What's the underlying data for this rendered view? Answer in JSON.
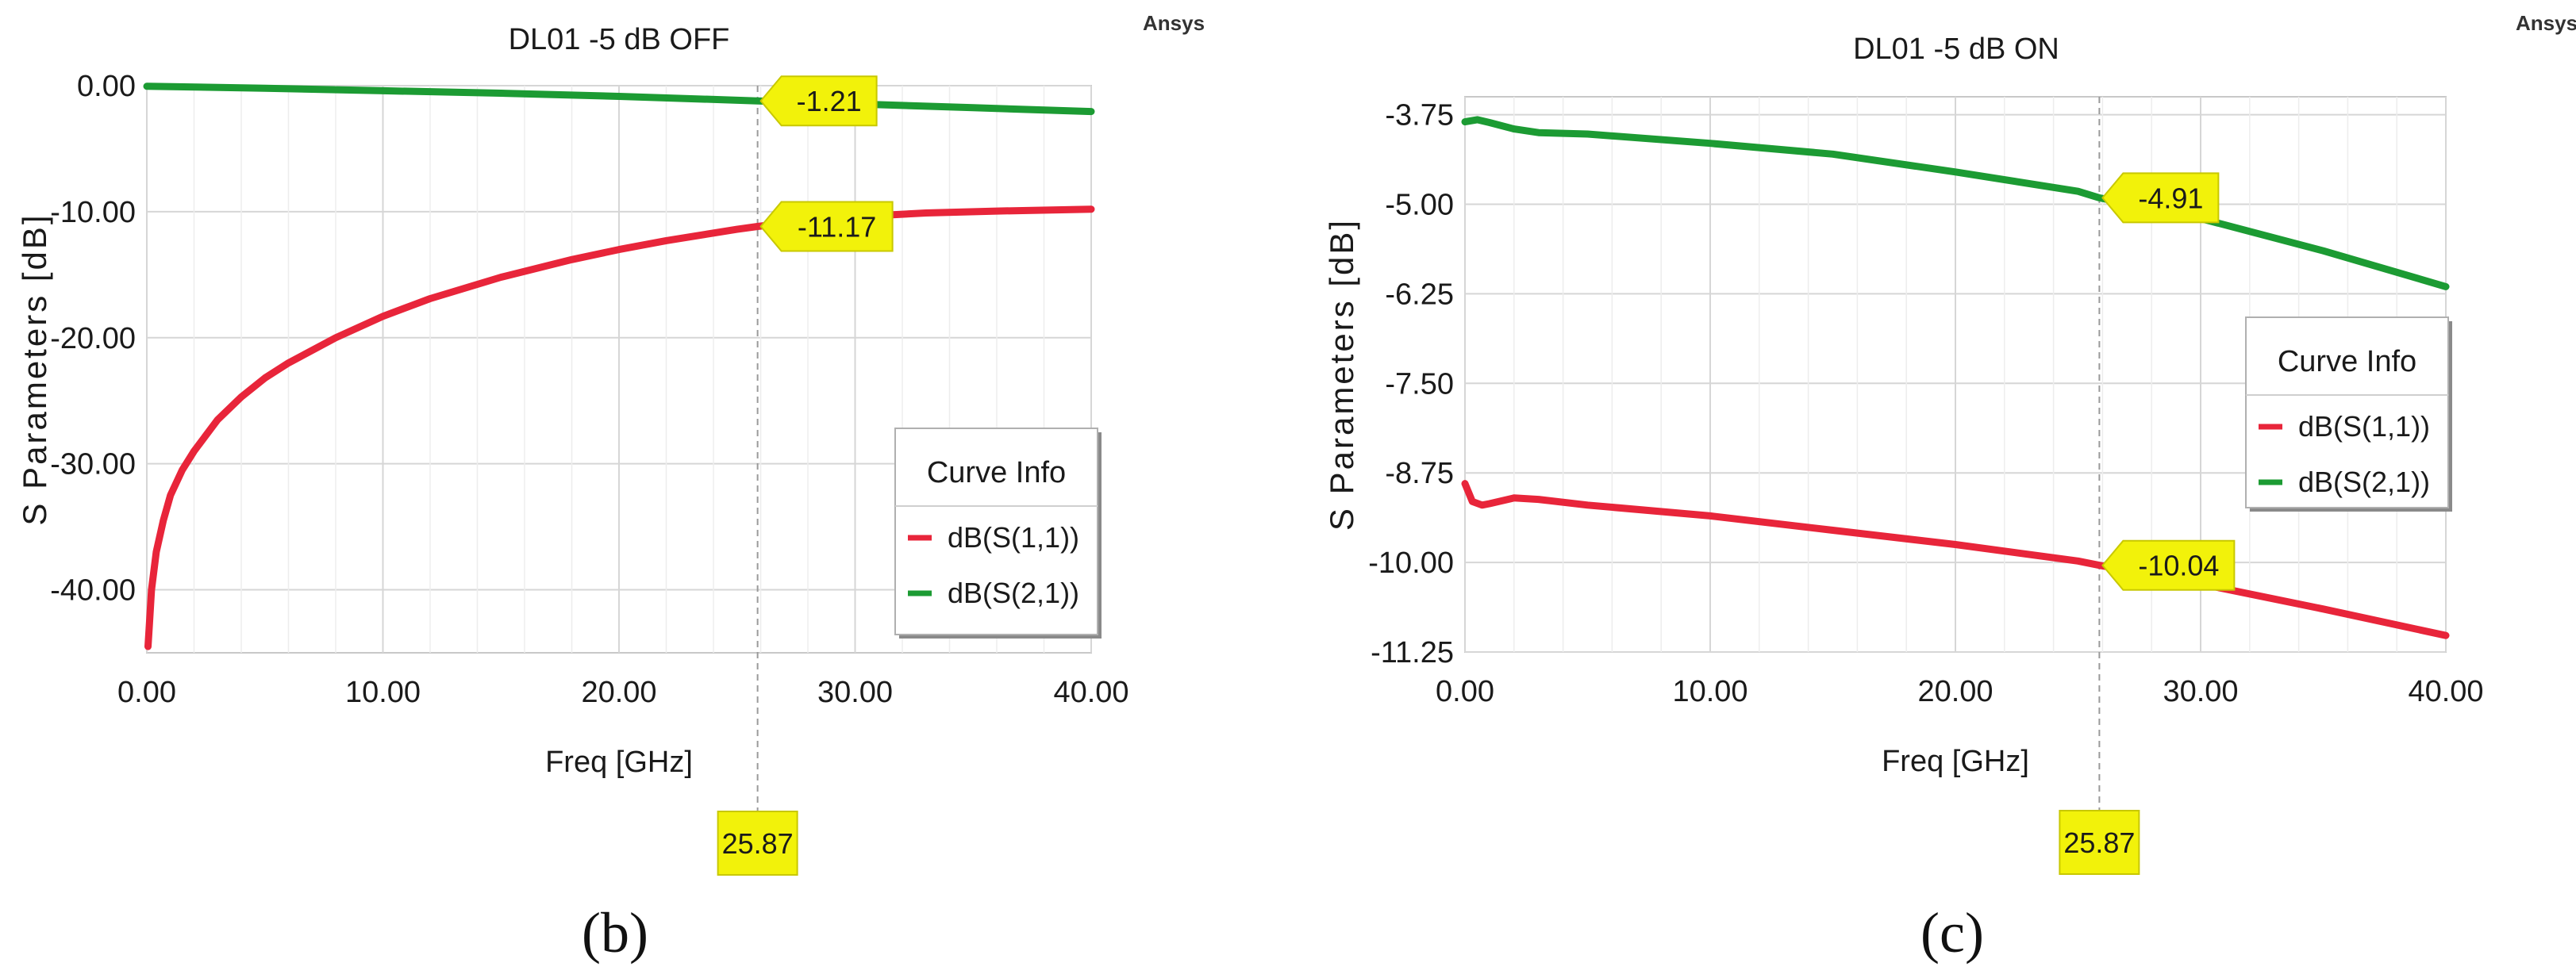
{
  "brand": "Ansys",
  "charts": [
    {
      "type": "line",
      "panel_caption": "(b)",
      "title": "DL01 -5 dB OFF",
      "xlabel": "Freq [GHz]",
      "ylabel": "S Parameters [dB]",
      "xlim": [
        0,
        40
      ],
      "ylim": [
        -45,
        0
      ],
      "x_ticks": [
        0,
        10,
        20,
        30,
        40
      ],
      "x_tick_labels": [
        "0.00",
        "10.00",
        "20.00",
        "30.00",
        "40.00"
      ],
      "y_ticks": [
        0,
        -10,
        -20,
        -30,
        -40
      ],
      "y_tick_labels": [
        "0.00",
        "-10.00",
        "-20.00",
        "-30.00",
        "-40.00"
      ],
      "grid": true,
      "legend": {
        "title": "Curve Info",
        "placement": "bottom-right",
        "entries": [
          "dB(S(1,1))",
          "dB(S(2,1))"
        ]
      },
      "marker": {
        "x": 25.87,
        "label": "25.87"
      },
      "series": [
        {
          "name": "dB(S(1,1))",
          "color": "#e8253a",
          "x": [
            0.05,
            0.1,
            0.2,
            0.4,
            0.7,
            1,
            1.5,
            2,
            3,
            4,
            5,
            6,
            8,
            10,
            12,
            15,
            18,
            20,
            22,
            25,
            25.87,
            28,
            30,
            33,
            36,
            40
          ],
          "y": [
            -44.5,
            -43,
            -40,
            -37,
            -34.5,
            -32.5,
            -30.5,
            -29,
            -26.5,
            -24.7,
            -23.2,
            -22,
            -20,
            -18.3,
            -16.9,
            -15.2,
            -13.8,
            -13,
            -12.3,
            -11.4,
            -11.17,
            -10.7,
            -10.4,
            -10.1,
            -9.95,
            -9.8
          ]
        },
        {
          "name": "dB(S(2,1))",
          "color": "#1c9b33",
          "x": [
            0,
            5,
            10,
            15,
            20,
            25.87,
            30,
            35,
            40
          ],
          "y": [
            -0.05,
            -0.2,
            -0.4,
            -0.6,
            -0.85,
            -1.21,
            -1.45,
            -1.75,
            -2.05
          ]
        }
      ],
      "callouts": [
        {
          "series": "dB(S(2,1))",
          "x": 25.87,
          "y": -1.21,
          "label": "-1.21"
        },
        {
          "series": "dB(S(1,1))",
          "x": 25.87,
          "y": -11.17,
          "label": "-11.17"
        }
      ]
    },
    {
      "type": "line",
      "panel_caption": "(c)",
      "title": "DL01 -5 dB ON",
      "xlabel": "Freq [GHz]",
      "ylabel": "S Parameters [dB]",
      "xlim": [
        0,
        40
      ],
      "ylim": [
        -11.25,
        -3.5
      ],
      "x_ticks": [
        0,
        10,
        20,
        30,
        40
      ],
      "x_tick_labels": [
        "0.00",
        "10.00",
        "20.00",
        "30.00",
        "40.00"
      ],
      "y_ticks": [
        -3.75,
        -5,
        -6.25,
        -7.5,
        -8.75,
        -10,
        -11.25
      ],
      "y_tick_labels": [
        "-3.75",
        "-5.00",
        "-6.25",
        "-7.50",
        "-8.75",
        "-10.00",
        "-11.25"
      ],
      "grid": true,
      "legend": {
        "title": "Curve Info",
        "placement": "right",
        "entries": [
          "dB(S(1,1))",
          "dB(S(2,1))"
        ]
      },
      "marker": {
        "x": 25.87,
        "label": "25.87"
      },
      "series": [
        {
          "name": "dB(S(1,1))",
          "color": "#e8253a",
          "x": [
            0,
            0.3,
            0.7,
            1,
            2,
            3,
            5,
            10,
            15,
            20,
            25,
            25.87,
            30,
            35,
            40
          ],
          "y": [
            -8.9,
            -9.15,
            -9.2,
            -9.18,
            -9.1,
            -9.12,
            -9.2,
            -9.35,
            -9.55,
            -9.75,
            -9.98,
            -10.04,
            -10.3,
            -10.65,
            -11.02
          ]
        },
        {
          "name": "dB(S(2,1))",
          "color": "#1c9b33",
          "x": [
            0,
            0.5,
            1,
            2,
            3,
            5,
            10,
            15,
            20,
            25,
            25.87,
            30,
            35,
            40
          ],
          "y": [
            -3.85,
            -3.82,
            -3.86,
            -3.95,
            -4.0,
            -4.02,
            -4.15,
            -4.3,
            -4.55,
            -4.82,
            -4.91,
            -5.2,
            -5.65,
            -6.15
          ]
        }
      ],
      "callouts": [
        {
          "series": "dB(S(2,1))",
          "x": 25.87,
          "y": -4.91,
          "label": "-4.91"
        },
        {
          "series": "dB(S(1,1))",
          "x": 25.87,
          "y": -10.04,
          "label": "-10.04"
        }
      ]
    }
  ]
}
